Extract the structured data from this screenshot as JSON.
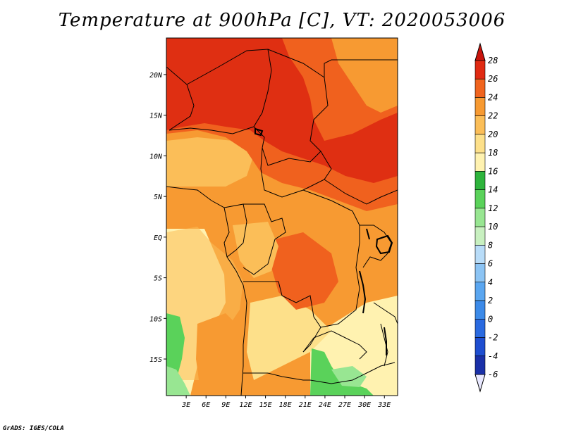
{
  "title": "Temperature at 900hPa [C], VT: 2020053006",
  "footer": "GrADS: IGES/COLA",
  "lat_labels": [
    "20N",
    "15N",
    "10N",
    "5N",
    "EQ",
    "5S",
    "10S",
    "15S"
  ],
  "lat_values": [
    20,
    15,
    10,
    5,
    0,
    -5,
    -10,
    -15
  ],
  "lon_labels": [
    "3E",
    "6E",
    "9E",
    "12E",
    "15E",
    "18E",
    "21E",
    "24E",
    "27E",
    "30E",
    "33E"
  ],
  "lon_values": [
    3,
    6,
    9,
    12,
    15,
    18,
    21,
    24,
    27,
    30,
    33
  ],
  "map_extent": {
    "lon_min": 0,
    "lon_max": 35,
    "lat_min": -19.5,
    "lat_max": 24.5
  },
  "colorbar": {
    "levels": [
      "-6",
      "-4",
      "-2",
      "0",
      "2",
      "4",
      "6",
      "8",
      "10",
      "12",
      "14",
      "16",
      "18",
      "20",
      "22",
      "24",
      "26",
      "28"
    ],
    "colors": [
      "#110a73",
      "#1a30a8",
      "#1e4ed0",
      "#2a6ae0",
      "#3c8ae8",
      "#5aa6f0",
      "#8cc4f4",
      "#b8dcf8",
      "#c8f0c0",
      "#98e692",
      "#5ad25a",
      "#2eb43c",
      "#fff2b0",
      "#fde08a",
      "#fbbe58",
      "#f79a32",
      "#f0641e",
      "#e02a12",
      "#c8140c"
    ]
  },
  "colors": {
    "zone_hot": "#df2f12",
    "zone_warm": "#f0611e",
    "zone_orange": "#f79a32",
    "zone_lightorange": "#fbbe58",
    "zone_paleyellow": "#fde08a",
    "zone_cream": "#fff2b0",
    "zone_green": "#5ad25a",
    "zone_lightgreen": "#98e692"
  }
}
